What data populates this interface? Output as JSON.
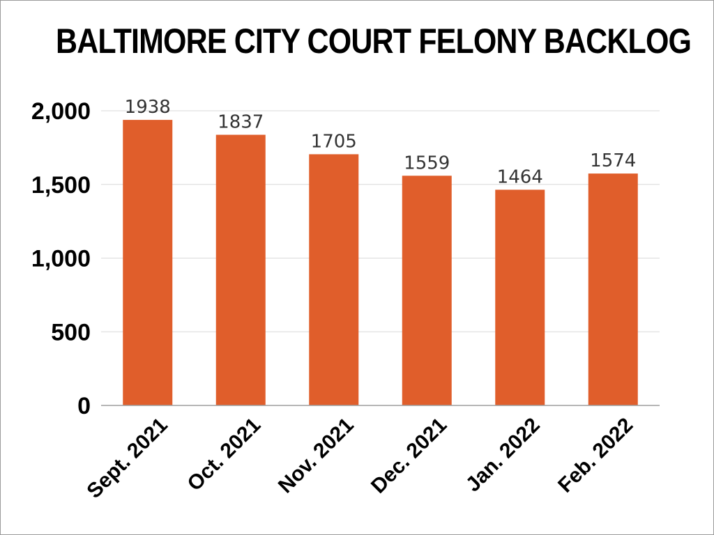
{
  "chart_data": {
    "type": "bar",
    "title": "BALTIMORE CITY COURT FELONY BACKLOG",
    "xlabel": "",
    "ylabel": "",
    "categories": [
      "Sept. 2021",
      "Oct. 2021",
      "Nov. 2021",
      "Dec. 2021",
      "Jan. 2022",
      "Feb. 2022"
    ],
    "values": [
      1938,
      1837,
      1705,
      1559,
      1464,
      1574
    ],
    "data_labels": [
      "1938",
      "1837",
      "1705",
      "1559",
      "1464",
      "1574"
    ],
    "yticks": [
      0,
      500,
      1000,
      1500,
      2000
    ],
    "ytick_labels": [
      "0",
      "500",
      "1,000",
      "1,500",
      "2,000"
    ],
    "ylim": [
      0,
      2000
    ],
    "grid": true,
    "legend": "none",
    "bar_color": "#e05e2b"
  }
}
